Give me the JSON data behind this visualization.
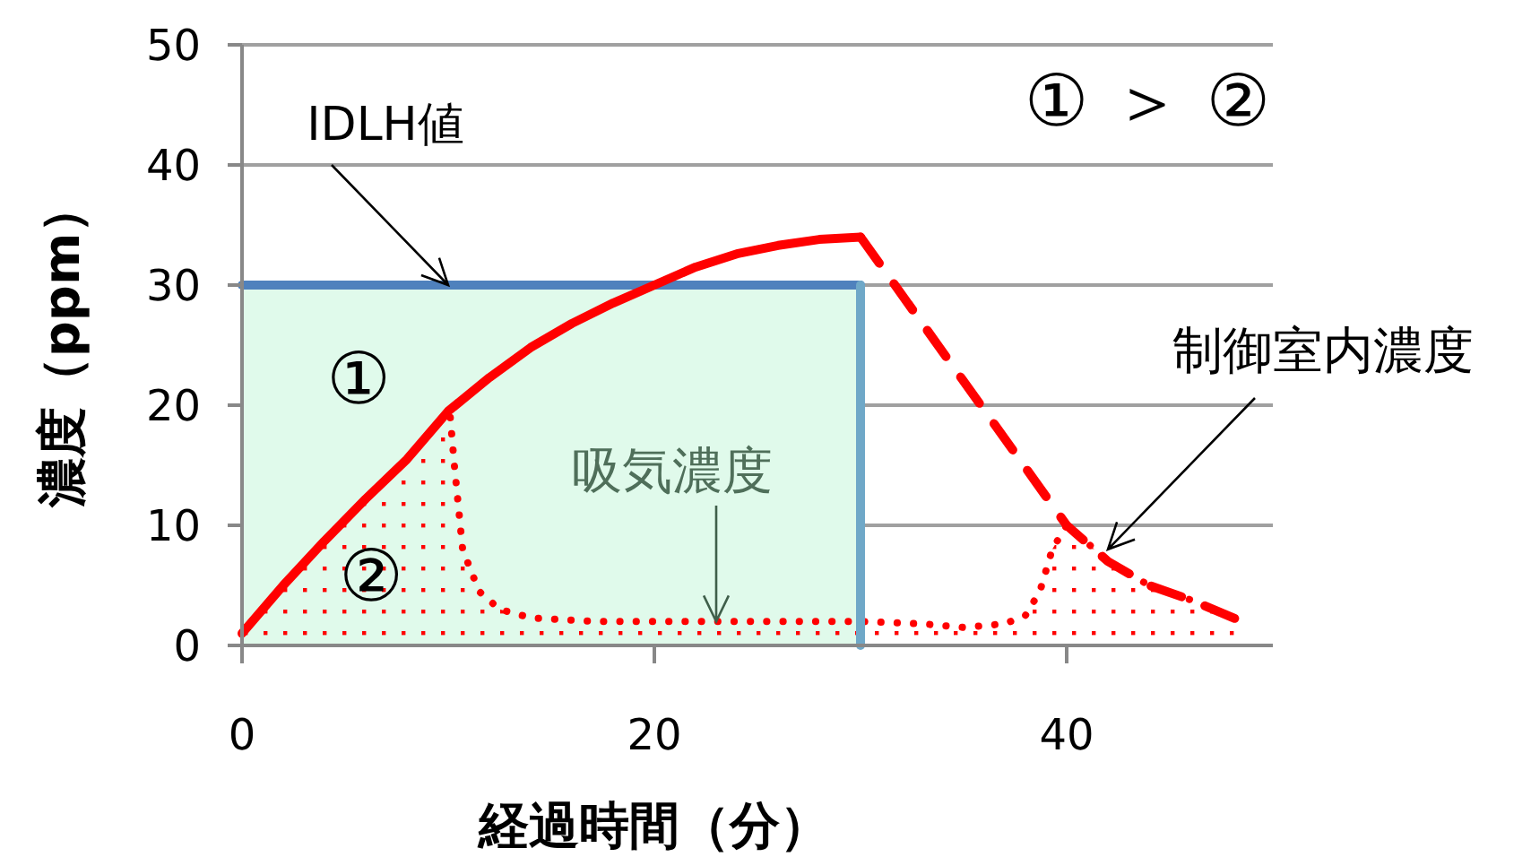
{
  "chart_data": {
    "type": "line",
    "xlabel": "経過時間（分）",
    "ylabel": "濃度（ppm）",
    "xlim": [
      0,
      50
    ],
    "xticks": [
      0,
      20,
      40
    ],
    "ylim": [
      0,
      50
    ],
    "yticks": [
      0,
      10,
      20,
      30,
      40,
      50
    ],
    "grid": "y",
    "series": [
      {
        "type": "area",
        "color": "#4f81bd",
        "line_style": "solid",
        "x": [
          0,
          30
        ],
        "values": [
          30,
          30
        ]
      },
      {
        "color": "#6fa8c8",
        "x": [
          30,
          30
        ],
        "values": [
          30,
          0
        ]
      },
      {
        "type": "area",
        "color": "#ff0000",
        "line_style": "dotted",
        "x": [
          0,
          2,
          4,
          6,
          8,
          10,
          10.1,
          10.3,
          10.7,
          11.5,
          12.5,
          14,
          17,
          20,
          25,
          30,
          33,
          35,
          37,
          38,
          38.7,
          39.3,
          40,
          40.7,
          42,
          44,
          46,
          48.5
        ],
        "values": [
          1,
          5,
          8.7,
          12.2,
          15.5,
          19.5,
          19,
          15,
          8,
          4.5,
          3,
          2.3,
          2,
          2,
          2,
          2,
          1.8,
          1.5,
          1.8,
          2.5,
          4.5,
          8,
          10,
          9,
          7,
          5,
          3.8,
          2
        ]
      },
      {
        "type": "line",
        "color": "#ff0000",
        "line_style": "solid",
        "x": [
          0,
          2,
          4,
          6,
          8,
          10,
          12,
          14,
          16,
          18,
          20,
          22,
          24,
          26,
          28,
          30
        ],
        "values": [
          1,
          5,
          8.7,
          12.2,
          15.5,
          19.5,
          22.3,
          24.8,
          26.8,
          28.5,
          30,
          31.5,
          32.6,
          33.3,
          33.8,
          34
        ]
      },
      {
        "type": "line",
        "color": "#ff0000",
        "line_style": "dashed",
        "x": [
          30,
          40,
          42,
          44,
          46,
          48.5
        ],
        "values": [
          34,
          10,
          7,
          5,
          3.8,
          2
        ]
      }
    ],
    "annotations": [
      {
        "text": "IDLH値",
        "x": 10,
        "y": 30
      },
      {
        "text": "吸気濃度",
        "x": 23,
        "y": 2
      },
      {
        "text": "制御室内濃度",
        "x": 42,
        "y": 8
      },
      "①",
      "②",
      "① ＞ ②"
    ]
  }
}
